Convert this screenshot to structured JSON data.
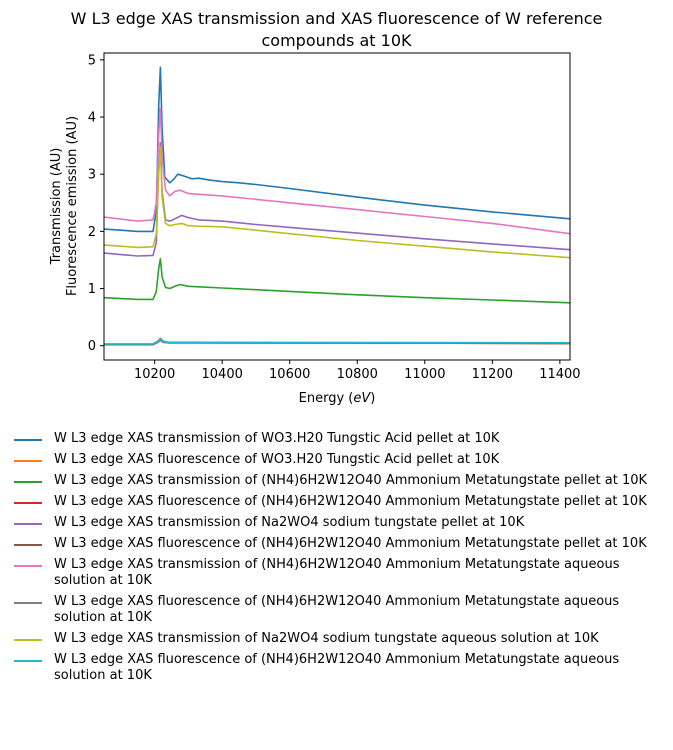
{
  "chart_data": {
    "type": "line",
    "title_line1": "W L3 edge XAS transmission and XAS fluorescence of W reference",
    "title_line2": "compounds at 10K",
    "xlabel": "Energy",
    "xlabel_unit": "eV",
    "ylabel_line1": "Transmission (AU)",
    "ylabel_line2": "Fluorescence emission (AU)",
    "xlim": [
      10050,
      11430
    ],
    "ylim": [
      -0.25,
      5.12
    ],
    "xticks": [
      10200,
      10400,
      10600,
      10800,
      11000,
      11200,
      11400
    ],
    "yticks": [
      0,
      1,
      2,
      3,
      4,
      5
    ],
    "legend_placement": "below",
    "series": [
      {
        "name": "W L3 edge XAS transmission of WO3.H20 Tungstic Acid pellet at 10K",
        "color": "#1f77b4",
        "x": [
          10050,
          10150,
          10195,
          10205,
          10212,
          10217,
          10222,
          10230,
          10245,
          10258,
          10268,
          10285,
          10310,
          10330,
          10360,
          10400,
          10450,
          10500,
          10600,
          10800,
          11000,
          11200,
          11430
        ],
        "y": [
          2.04,
          2.0,
          2.0,
          2.35,
          4.2,
          4.87,
          3.8,
          2.95,
          2.85,
          2.92,
          3.0,
          2.97,
          2.92,
          2.93,
          2.9,
          2.87,
          2.85,
          2.82,
          2.75,
          2.6,
          2.46,
          2.34,
          2.22
        ]
      },
      {
        "name": "W L3 edge XAS fluorescence of WO3.H20 Tungstic Acid pellet at 10K",
        "color": "#ff7f0e",
        "x": [
          10050,
          10195,
          10210,
          10217,
          10225,
          10240,
          10300,
          11430
        ],
        "y": [
          0.02,
          0.02,
          0.07,
          0.12,
          0.07,
          0.05,
          0.05,
          0.04
        ]
      },
      {
        "name": "W L3 edge XAS transmission of (NH4)6H2W12O40 Ammonium Metatungstate pellet at 10K",
        "color": "#2ca02c",
        "x": [
          10050,
          10150,
          10195,
          10205,
          10212,
          10217,
          10222,
          10232,
          10245,
          10260,
          10275,
          10300,
          10400,
          10600,
          10800,
          11000,
          11200,
          11430
        ],
        "y": [
          0.84,
          0.81,
          0.81,
          0.95,
          1.35,
          1.52,
          1.2,
          1.02,
          1.0,
          1.04,
          1.07,
          1.04,
          1.01,
          0.95,
          0.89,
          0.84,
          0.8,
          0.75
        ]
      },
      {
        "name": "W L3 edge XAS fluorescence of (NH4)6H2W12O40 Ammonium Metatungstate pellet at 10K",
        "color": "#d62728",
        "x": [
          10050,
          10195,
          10210,
          10217,
          10225,
          10240,
          10300,
          11430
        ],
        "y": [
          0.02,
          0.02,
          0.06,
          0.1,
          0.06,
          0.05,
          0.05,
          0.04
        ]
      },
      {
        "name": "W L3 edge XAS transmission of Na2WO4 sodium tungstate pellet at 10K",
        "color": "#9467bd",
        "x": [
          10050,
          10150,
          10195,
          10205,
          10212,
          10217,
          10222,
          10232,
          10245,
          10260,
          10280,
          10300,
          10330,
          10400,
          10500,
          10600,
          10800,
          11000,
          11200,
          11430
        ],
        "y": [
          1.62,
          1.57,
          1.58,
          1.8,
          3.1,
          3.55,
          2.7,
          2.2,
          2.18,
          2.22,
          2.28,
          2.24,
          2.2,
          2.18,
          2.12,
          2.07,
          1.97,
          1.87,
          1.78,
          1.68
        ]
      },
      {
        "name": "W L3 edge XAS fluorescence of (NH4)6H2W12O40 Ammonium Metatungstate pellet at 10K",
        "color": "#8c564b",
        "x": [
          10050,
          10195,
          10210,
          10217,
          10225,
          10240,
          10300,
          11430
        ],
        "y": [
          0.02,
          0.02,
          0.07,
          0.11,
          0.07,
          0.05,
          0.05,
          0.04
        ]
      },
      {
        "name": "W L3 edge XAS transmission of (NH4)6H2W12O40 Ammonium Metatungstate aqueous solution at 10K",
        "color": "#e377c2",
        "x": [
          10050,
          10150,
          10195,
          10205,
          10212,
          10217,
          10222,
          10232,
          10245,
          10260,
          10275,
          10300,
          10400,
          10600,
          10800,
          11000,
          11200,
          11430
        ],
        "y": [
          2.25,
          2.18,
          2.2,
          2.5,
          3.7,
          4.15,
          3.3,
          2.72,
          2.62,
          2.7,
          2.72,
          2.66,
          2.62,
          2.5,
          2.38,
          2.26,
          2.14,
          1.96
        ]
      },
      {
        "name": "W L3 edge XAS fluorescence of (NH4)6H2W12O40 Ammonium Metatungstate aqueous solution at 10K",
        "color": "#7f7f7f",
        "x": [
          10050,
          10195,
          10210,
          10217,
          10225,
          10240,
          10300,
          11430
        ],
        "y": [
          0.03,
          0.03,
          0.08,
          0.13,
          0.08,
          0.06,
          0.06,
          0.05
        ]
      },
      {
        "name": "W L3 edge XAS transmission of Na2WO4 sodium tungstate aqueous solution at 10K",
        "color": "#bcbd22",
        "x": [
          10050,
          10150,
          10195,
          10205,
          10212,
          10217,
          10222,
          10232,
          10245,
          10260,
          10280,
          10300,
          10330,
          10400,
          10500,
          10600,
          10800,
          11000,
          11200,
          11430
        ],
        "y": [
          1.76,
          1.72,
          1.73,
          1.95,
          3.0,
          3.48,
          2.6,
          2.14,
          2.1,
          2.12,
          2.14,
          2.1,
          2.09,
          2.08,
          2.02,
          1.96,
          1.84,
          1.74,
          1.64,
          1.54
        ]
      },
      {
        "name": "W L3 edge XAS fluorescence of (NH4)6H2W12O40 Ammonium Metatungstate aqueous solution at 10K",
        "color": "#17becf",
        "x": [
          10050,
          10195,
          10210,
          10217,
          10225,
          10240,
          10300,
          11430
        ],
        "y": [
          0.03,
          0.03,
          0.07,
          0.11,
          0.07,
          0.05,
          0.05,
          0.05
        ]
      }
    ]
  }
}
